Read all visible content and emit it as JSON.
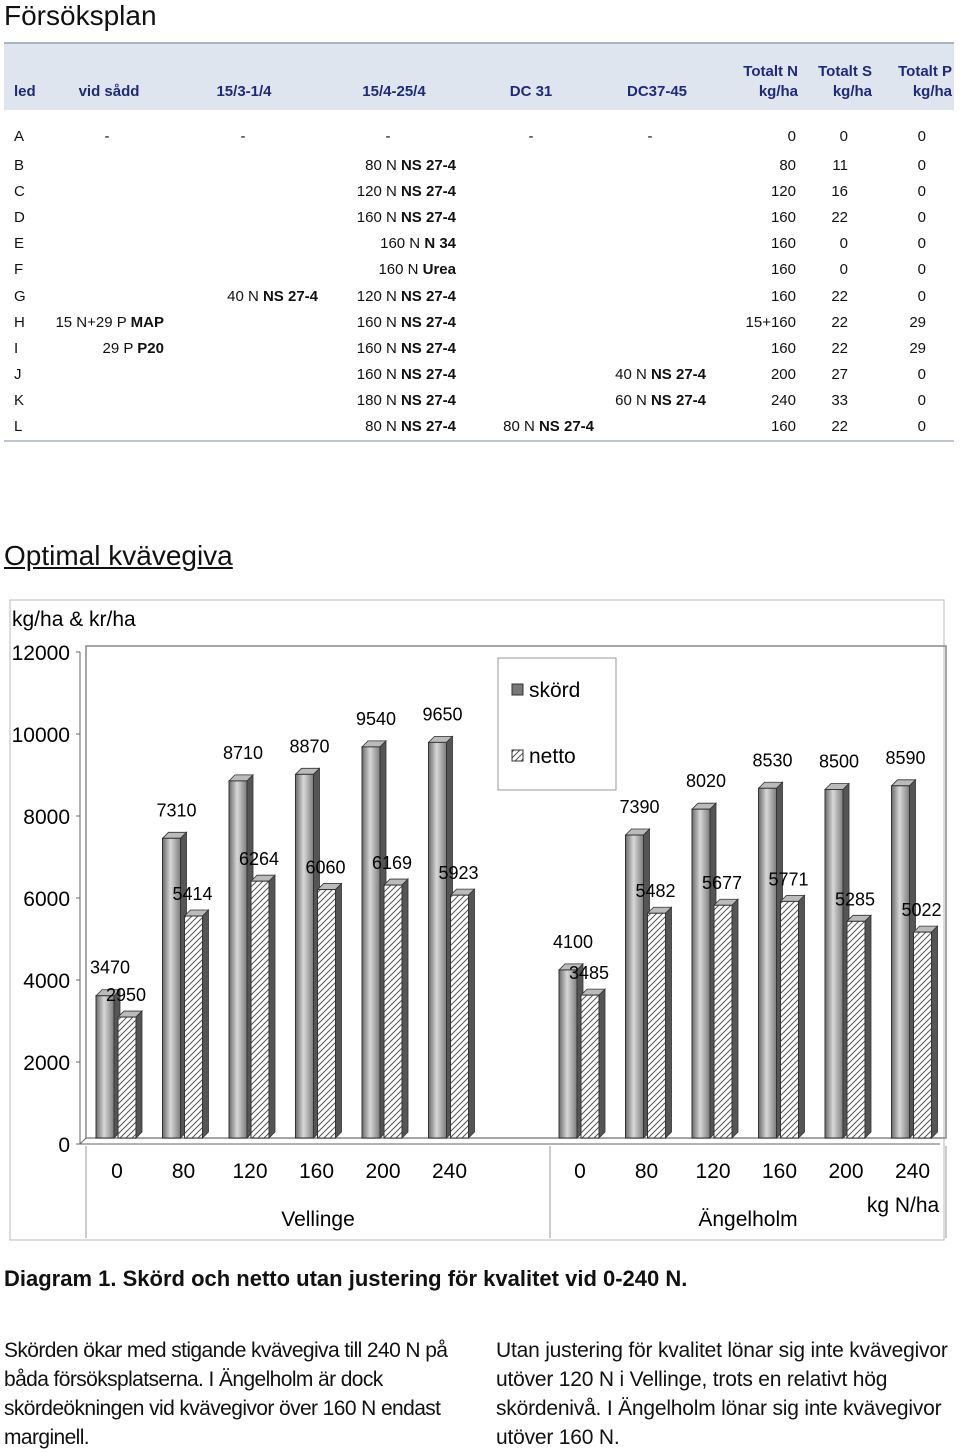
{
  "title": "Försöksplan",
  "table": {
    "headers": [
      "led",
      "vid sådd",
      "15/3-1/4",
      "15/4-25/4",
      "DC 31",
      "DC37-45",
      "Totalt N kg/ha",
      "Totalt S kg/ha",
      "Totalt P kg/ha"
    ],
    "rows": [
      {
        "led": "A",
        "sadd": "-",
        "p1": "-",
        "p2": "-",
        "dc31": "-",
        "dc37": "-",
        "n": "0",
        "s": "0",
        "p": "0"
      },
      {
        "led": "B",
        "sadd": "",
        "p1": "",
        "p2": "80 N  NS 27-4",
        "dc31": "",
        "dc37": "",
        "n": "80",
        "s": "11",
        "p": "0"
      },
      {
        "led": "C",
        "sadd": "",
        "p1": "",
        "p2": "120 N  NS 27-4",
        "dc31": "",
        "dc37": "",
        "n": "120",
        "s": "16",
        "p": "0"
      },
      {
        "led": "D",
        "sadd": "",
        "p1": "",
        "p2": "160 N  NS 27-4",
        "dc31": "",
        "dc37": "",
        "n": "160",
        "s": "22",
        "p": "0"
      },
      {
        "led": "E",
        "sadd": "",
        "p1": "",
        "p2": "160 N  N 34",
        "dc31": "",
        "dc37": "",
        "n": "160",
        "s": "0",
        "p": "0"
      },
      {
        "led": "F",
        "sadd": "",
        "p1": "",
        "p2": "160 N  Urea",
        "dc31": "",
        "dc37": "",
        "n": "160",
        "s": "0",
        "p": "0"
      },
      {
        "led": "G",
        "sadd": "",
        "p1": "40 N  NS 27-4",
        "p2": "120 N  NS 27-4",
        "dc31": "",
        "dc37": "",
        "n": "160",
        "s": "22",
        "p": "0"
      },
      {
        "led": "H",
        "sadd": "15 N+29 P  MAP",
        "p1": "",
        "p2": "160 N  NS 27-4",
        "dc31": "",
        "dc37": "",
        "n": "15+160",
        "s": "22",
        "p": "29"
      },
      {
        "led": "I",
        "sadd": "29 P  P20",
        "p1": "",
        "p2": "160 N  NS 27-4",
        "dc31": "",
        "dc37": "",
        "n": "160",
        "s": "22",
        "p": "29"
      },
      {
        "led": "J",
        "sadd": "",
        "p1": "",
        "p2": "160 N  NS 27-4",
        "dc31": "",
        "dc37": "40 N  NS 27-4",
        "n": "200",
        "s": "27",
        "p": "0"
      },
      {
        "led": "K",
        "sadd": "",
        "p1": "",
        "p2": "180 N  NS 27-4",
        "dc31": "",
        "dc37": "60 N  NS 27-4",
        "n": "240",
        "s": "33",
        "p": "0"
      },
      {
        "led": "L",
        "sadd": "",
        "p1": "",
        "p2": "80 N  NS 27-4",
        "dc31": "80 N  NS 27-4",
        "dc37": "",
        "n": "160",
        "s": "22",
        "p": "0"
      }
    ]
  },
  "subtitle": "Optimal kvävegiva",
  "chart_data": {
    "type": "bar",
    "ylabel": "kg/ha & kr/ha",
    "xlabel": "kg N/ha",
    "ylim": [
      0,
      12000
    ],
    "yticks": [
      0,
      2000,
      4000,
      6000,
      8000,
      10000,
      12000
    ],
    "legend": [
      "skörd",
      "netto"
    ],
    "groups": [
      {
        "name": "Vellinge",
        "x": [
          0,
          80,
          120,
          160,
          200,
          240
        ],
        "skord": [
          3470,
          7310,
          8710,
          8870,
          9540,
          9650
        ],
        "netto": [
          2950,
          5414,
          6264,
          6060,
          6169,
          5923
        ]
      },
      {
        "name": "Ängelholm",
        "x": [
          0,
          80,
          120,
          160,
          200,
          240
        ],
        "skord": [
          4100,
          7390,
          8020,
          8530,
          8500,
          8590
        ],
        "netto": [
          3485,
          5482,
          5677,
          5771,
          5285,
          5022
        ]
      }
    ]
  },
  "caption": "Diagram 1. Skörd och netto utan justering för kvalitet vid 0-240 N.",
  "body_left": "Skörden ökar med stigande kvävegiva till 240 N på båda försöksplatserna. I Ängelholm är dock skördeökningen vid kvävegivor över 160 N endast marginell.",
  "body_right": "Utan justering för kvalitet lönar sig inte kvävegivor utöver 120 N i Vellinge, trots en relativt hög skördenivå. I Ängelholm lönar sig inte kvävegivor utöver 160 N."
}
